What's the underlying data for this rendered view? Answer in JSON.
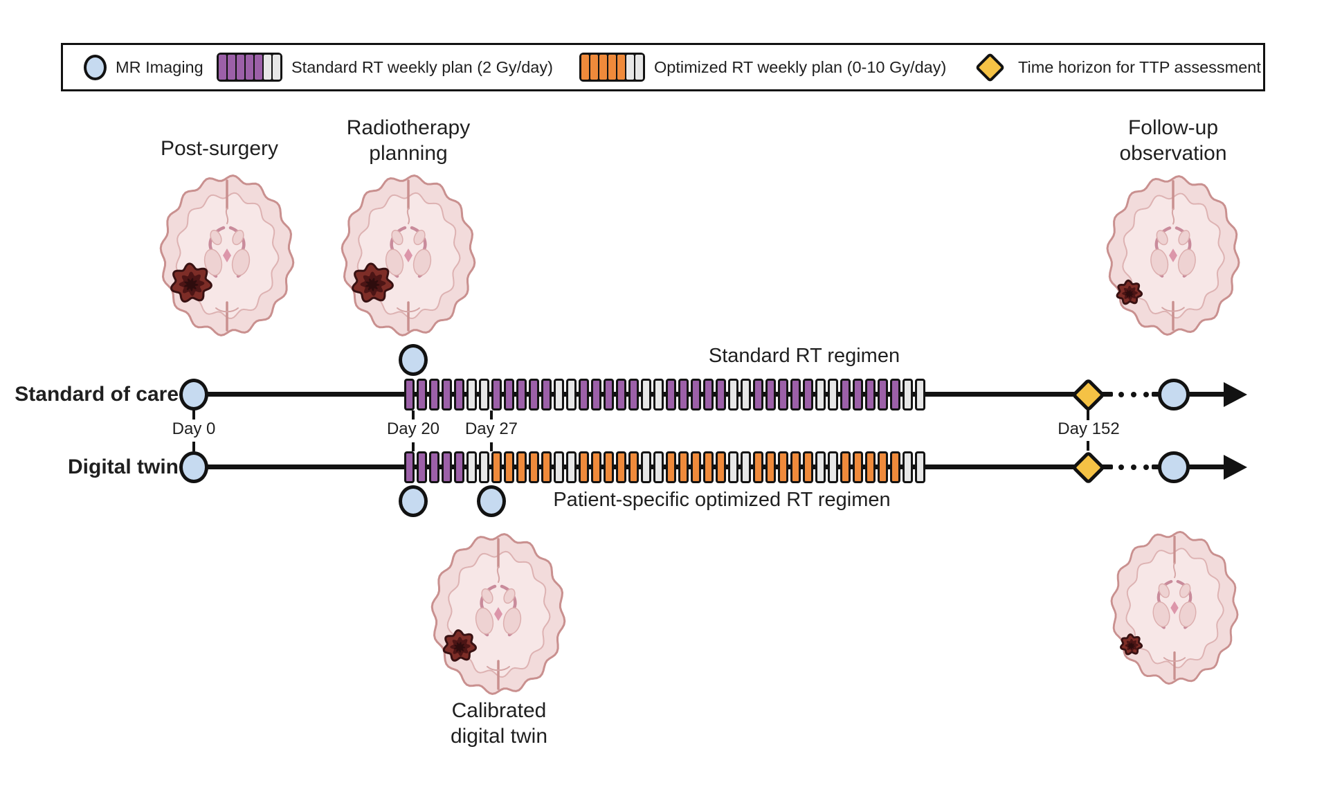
{
  "figure": {
    "legend": {
      "items": [
        {
          "id": "mr-imaging",
          "label": "MR Imaging"
        },
        {
          "id": "standard-week",
          "label": "Standard RT weekly plan (2 Gy/day)"
        },
        {
          "id": "optimized-week",
          "label": "Optimized RT weekly plan (0-10 Gy/day)"
        },
        {
          "id": "ttp-horizon",
          "label": "Time horizon for TTP assessment"
        }
      ]
    },
    "rows": [
      {
        "id": "standard-of-care",
        "label": "Standard of care",
        "regimen_title": "Standard RT regimen",
        "weeks": [
          "standard",
          "standard",
          "standard",
          "standard",
          "standard",
          "standard"
        ]
      },
      {
        "id": "digital-twin",
        "label": "Digital twin",
        "regimen_title": "Patient-specific optimized RT regimen",
        "weeks": [
          "standard",
          "optimized",
          "optimized",
          "optimized",
          "optimized",
          "optimized"
        ]
      }
    ],
    "week_pattern": {
      "treatment_days": 5,
      "rest_days": 2
    },
    "day_labels": {
      "day0": "Day 0",
      "day20": "Day 20",
      "day27": "Day 27",
      "day152": "Day 152"
    },
    "stages": {
      "post_surgery": {
        "line1": "Post-surgery",
        "line2": ""
      },
      "planning": {
        "line1": "Radiotherapy",
        "line2": "planning"
      },
      "follow_up": {
        "line1": "Follow-up",
        "line2": "observation"
      },
      "calibrated": {
        "line1": "Calibrated",
        "line2": "digital twin"
      }
    },
    "brains": [
      {
        "id": "post-surgery-brain",
        "tumor_scale": 1.0,
        "tumor_dx": -52,
        "tumor_dy": 40
      },
      {
        "id": "planning-brain",
        "tumor_scale": 1.0,
        "tumor_dx": -52,
        "tumor_dy": 40
      },
      {
        "id": "follow-up-brain",
        "tumor_scale": 0.62,
        "tumor_dx": -64,
        "tumor_dy": 54
      },
      {
        "id": "calibrated-twin-brain",
        "tumor_scale": 0.8,
        "tumor_dx": -56,
        "tumor_dy": 46
      },
      {
        "id": "follow-up-twin-brain",
        "tumor_scale": 0.55,
        "tumor_dx": -66,
        "tumor_dy": 56
      }
    ],
    "colors": {
      "standard": "#9c60a8",
      "optimized": "#ef8a3b",
      "rest": "#e7e7e7",
      "mr_circle": "#c6daf0",
      "ttp_diamond": "#f5c245"
    }
  }
}
